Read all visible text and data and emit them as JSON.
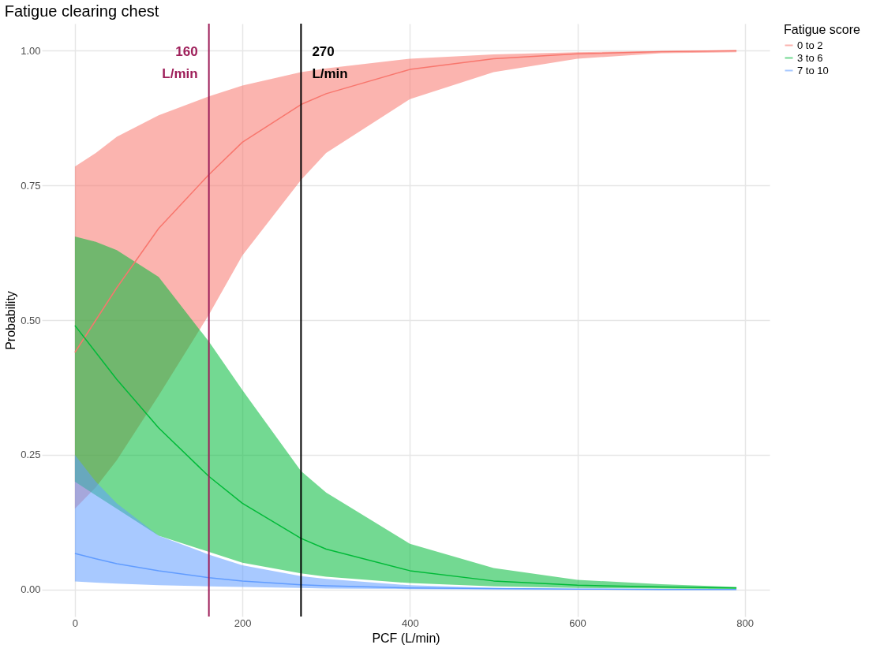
{
  "chart_data": {
    "type": "line",
    "title": "Fatigue clearing chest",
    "xlabel": "PCF (L/min)",
    "ylabel": "Probability",
    "legend_title": "Fatigue score",
    "x": [
      0,
      25,
      50,
      100,
      160,
      200,
      270,
      300,
      400,
      500,
      600,
      700,
      790
    ],
    "series": [
      {
        "name": "0 to 2",
        "color": "#f8766d",
        "values": [
          0.44,
          0.5,
          0.56,
          0.67,
          0.77,
          0.83,
          0.9,
          0.92,
          0.965,
          0.985,
          0.994,
          0.998,
          1.0
        ],
        "lower": [
          0.15,
          0.19,
          0.24,
          0.36,
          0.51,
          0.62,
          0.76,
          0.81,
          0.91,
          0.96,
          0.985,
          0.995,
          0.997
        ],
        "upper": [
          0.785,
          0.81,
          0.84,
          0.88,
          0.915,
          0.935,
          0.96,
          0.967,
          0.985,
          0.993,
          0.997,
          0.999,
          1.0
        ]
      },
      {
        "name": "3 to 6",
        "color": "#00ba38",
        "values": [
          0.49,
          0.44,
          0.39,
          0.3,
          0.21,
          0.16,
          0.095,
          0.075,
          0.035,
          0.016,
          0.008,
          0.005,
          0.003
        ],
        "lower": [
          0.2,
          0.175,
          0.15,
          0.1,
          0.07,
          0.05,
          0.03,
          0.024,
          0.012,
          0.006,
          0.003,
          0.002,
          0.001
        ],
        "upper": [
          0.655,
          0.645,
          0.63,
          0.58,
          0.46,
          0.37,
          0.22,
          0.18,
          0.085,
          0.04,
          0.018,
          0.01,
          0.005
        ]
      },
      {
        "name": "7 to 10",
        "color": "#619cff",
        "values": [
          0.067,
          0.057,
          0.048,
          0.035,
          0.022,
          0.016,
          0.009,
          0.007,
          0.003,
          0.002,
          0.001,
          0.0,
          0.0
        ],
        "lower": [
          0.015,
          0.013,
          0.011,
          0.008,
          0.006,
          0.005,
          0.003,
          0.002,
          0.001,
          0.0,
          0.0,
          0.0,
          0.0
        ],
        "upper": [
          0.25,
          0.2,
          0.16,
          0.1,
          0.065,
          0.045,
          0.025,
          0.02,
          0.008,
          0.003,
          0.001,
          0.001,
          0.0
        ]
      }
    ],
    "xlim": [
      -39.5,
      829.5
    ],
    "xticks": [
      0,
      200,
      400,
      600,
      800
    ],
    "ylim": [
      -0.05,
      1.05
    ],
    "yticks": [
      {
        "value": 0,
        "label": "0.00"
      },
      {
        "value": 0.25,
        "label": "0.25"
      },
      {
        "value": 0.5,
        "label": "0.50"
      },
      {
        "value": 0.75,
        "label": "0.75"
      },
      {
        "value": 1,
        "label": "1.00"
      }
    ],
    "ref_lines": [
      {
        "axis": "x",
        "value": 160,
        "label": "160\nL/min",
        "color": "#9e1f5a"
      },
      {
        "axis": "x",
        "value": 270,
        "label": "270\nL/min",
        "color": "#000000"
      }
    ],
    "grid": true,
    "legend": "right",
    "line_style": "solid",
    "marker": "none"
  }
}
